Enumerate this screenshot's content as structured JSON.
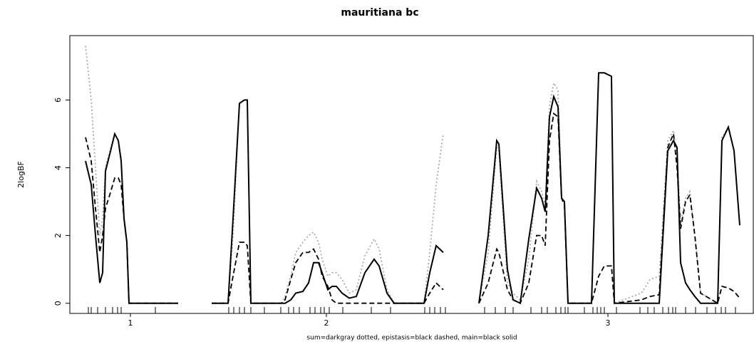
{
  "chart_data": {
    "type": "line",
    "title": "mauritiana bc",
    "y_label": "2logBF",
    "x_label": "sum=darkgray dotted, epistasis=black dashed, main=black solid",
    "xlim": [
      0,
      960
    ],
    "ylim": [
      -0.3,
      7.9
    ],
    "xticks": [
      {
        "value": 85,
        "label": "1"
      },
      {
        "value": 360,
        "label": "2"
      },
      {
        "value": 755,
        "label": "3"
      }
    ],
    "yticks": [
      0,
      2,
      4,
      6
    ],
    "rug": [
      26,
      30,
      39,
      50,
      60,
      67,
      72,
      120,
      223,
      230,
      238,
      245,
      254,
      273,
      296,
      307,
      314,
      322,
      337,
      344,
      352,
      357,
      364,
      383,
      423,
      450,
      498,
      505,
      512,
      520,
      527,
      582,
      597,
      611,
      622,
      647,
      662,
      670,
      682,
      689,
      695,
      699,
      722,
      734,
      740,
      745,
      750,
      767,
      800,
      811,
      820,
      832,
      840,
      846,
      850,
      864,
      878,
      894,
      906,
      914,
      920,
      934
    ],
    "x": [
      22,
      30,
      36,
      42,
      46,
      50,
      56,
      63,
      68,
      72,
      76,
      80,
      83,
      152,
      172,
      199,
      222,
      229,
      238,
      245,
      249,
      254,
      297,
      302,
      310,
      317,
      327,
      335,
      342,
      349,
      354,
      362,
      368,
      374,
      382,
      392,
      402,
      414,
      427,
      434,
      445,
      455,
      497,
      505,
      514,
      524,
      550,
      574,
      587,
      599,
      602,
      614,
      622,
      632,
      644,
      655,
      662,
      667,
      673,
      679,
      685,
      690,
      694,
      699,
      732,
      742,
      750,
      760,
      764,
      802,
      814,
      827,
      839,
      847,
      852,
      857,
      864,
      870,
      877,
      885,
      909,
      915,
      924,
      932,
      940
    ],
    "series": [
      {
        "color": "#a9a9a9",
        "style": "dotted",
        "values": [
          7.6,
          6.0,
          4.0,
          2.0,
          2.5,
          4.0,
          4.5,
          5.0,
          4.8,
          4.3,
          2.6,
          1.8,
          0,
          0,
          null,
          0,
          0,
          2.0,
          5.9,
          6.0,
          6.0,
          0,
          0,
          0.2,
          0.8,
          1.5,
          1.8,
          2.0,
          2.1,
          1.8,
          1.3,
          0.8,
          0.9,
          0.9,
          0.7,
          0.3,
          0.4,
          1.4,
          1.9,
          1.6,
          0.4,
          0,
          0,
          1.5,
          3.5,
          5.0,
          null,
          0,
          1.5,
          4.6,
          4.5,
          0.6,
          0.3,
          0.1,
          1.3,
          3.6,
          3.3,
          2.9,
          5.8,
          6.5,
          6.3,
          3.1,
          2.9,
          0,
          0,
          6.8,
          6.8,
          6.7,
          0,
          0.3,
          0.7,
          0.8,
          4.8,
          5.1,
          4.3,
          2.4,
          3.1,
          3.3,
          2.0,
          0.3,
          0,
          4.9,
          5.2,
          4.5,
          2.3
        ]
      },
      {
        "color": "#000000",
        "style": "dashed",
        "values": [
          4.9,
          4.2,
          2.8,
          1.5,
          2.0,
          2.8,
          3.2,
          3.7,
          3.7,
          3.5,
          2.5,
          1.8,
          0,
          0,
          null,
          0,
          0,
          0.8,
          1.8,
          1.8,
          1.7,
          0,
          0,
          0.1,
          0.7,
          1.2,
          1.5,
          1.5,
          1.6,
          1.3,
          0.8,
          0.5,
          0.1,
          0,
          0,
          0,
          0,
          0,
          0,
          0,
          0,
          0,
          0,
          0.3,
          0.6,
          0.4,
          null,
          0,
          0.6,
          1.6,
          1.5,
          0.4,
          0.1,
          0,
          0.6,
          2.0,
          2.0,
          1.7,
          4.8,
          5.6,
          5.5,
          3.1,
          2.9,
          0,
          0,
          0.8,
          1.1,
          1.1,
          0,
          0.1,
          0.2,
          0.25,
          4.6,
          5.0,
          4.0,
          2.2,
          3.0,
          3.2,
          2.0,
          0.3,
          0,
          0.5,
          0.45,
          0.35,
          0.15
        ]
      },
      {
        "color": "#000000",
        "style": "solid",
        "values": [
          4.2,
          3.5,
          2.0,
          0.6,
          0.9,
          3.9,
          4.4,
          5.0,
          4.8,
          4.2,
          2.5,
          1.8,
          0,
          0,
          null,
          0,
          0,
          2.5,
          5.9,
          6.0,
          6.0,
          0,
          0,
          0,
          0.1,
          0.3,
          0.35,
          0.6,
          1.2,
          1.2,
          0.9,
          0.4,
          0.5,
          0.5,
          0.3,
          0.15,
          0.2,
          0.9,
          1.3,
          1.1,
          0.3,
          0,
          0,
          0.9,
          1.7,
          1.5,
          null,
          0,
          2.0,
          4.8,
          4.7,
          1.0,
          0.1,
          0,
          1.9,
          3.4,
          3.1,
          2.7,
          5.5,
          6.1,
          5.8,
          3.1,
          3.0,
          0,
          0,
          6.8,
          6.8,
          6.7,
          0,
          0,
          0,
          0,
          4.5,
          4.8,
          4.6,
          1.2,
          0.6,
          0.4,
          0.2,
          0,
          0,
          4.8,
          5.2,
          4.5,
          2.3
        ]
      }
    ]
  }
}
